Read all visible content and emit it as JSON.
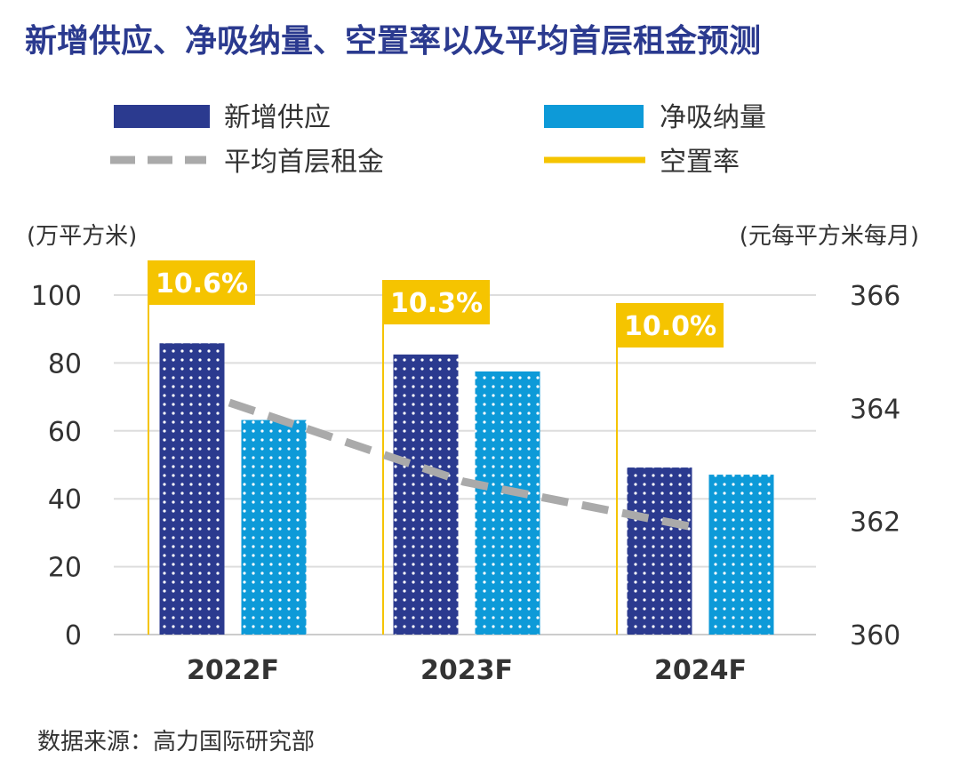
{
  "chart_data": {
    "type": "bar",
    "title": "新增供应、净吸纳量、空置率以及平均首层租金预测",
    "categories": [
      "2022F",
      "2023F",
      "2024F"
    ],
    "series": [
      {
        "name": "新增供应",
        "kind": "bar",
        "axis": "left",
        "color": "#2b3a8f",
        "values": [
          85.8,
          82.5,
          49.2
        ]
      },
      {
        "name": "净吸纳量",
        "kind": "bar",
        "axis": "left",
        "color": "#0d9ad8",
        "values": [
          63.2,
          77.5,
          47.1
        ]
      },
      {
        "name": "平均首层租金",
        "kind": "line",
        "style": "dashed",
        "axis": "right",
        "color": "#aaaaaa",
        "values": [
          364.1,
          362.7,
          361.9
        ]
      },
      {
        "name": "空置率",
        "kind": "marker",
        "color": "#f5c400",
        "values": [
          "10.6%",
          "10.3%",
          "10.0%"
        ]
      }
    ],
    "left_axis": {
      "unit": "(万平方米)",
      "ticks": [
        "0",
        "20",
        "40",
        "60",
        "80",
        "100"
      ],
      "ylim": [
        0,
        100
      ]
    },
    "right_axis": {
      "unit": "(元每平方米每月)",
      "ticks": [
        "360",
        "362",
        "364",
        "366"
      ],
      "ylim": [
        360,
        366
      ]
    },
    "grid": true,
    "legend": {
      "position": "top"
    },
    "source": "数据来源：高力国际研究部"
  }
}
